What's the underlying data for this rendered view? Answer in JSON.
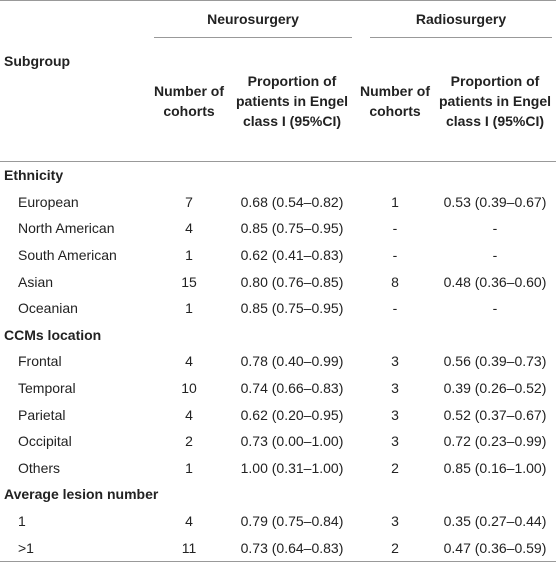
{
  "table": {
    "groups": [
      "Neurosurgery",
      "Radiosurgery"
    ],
    "columns": [
      "Subgroup",
      "Number of cohorts",
      "Proportion of patients in Engel class I (95%CI)",
      "Number of cohorts",
      "Proportion of patients in Engel class I (95%CI)"
    ],
    "sections": [
      {
        "title": "Ethnicity",
        "rows": [
          [
            "European",
            7,
            "0.68 (0.54–0.82)",
            1,
            "0.53 (0.39–0.67)"
          ],
          [
            "North American",
            4,
            "0.85 (0.75–0.95)",
            "-",
            "-"
          ],
          [
            "South American",
            1,
            "0.62 (0.41–0.83)",
            "-",
            "-"
          ],
          [
            "Asian",
            15,
            "0.80 (0.76–0.85)",
            8,
            "0.48 (0.36–0.60)"
          ],
          [
            "Oceanian",
            1,
            "0.85 (0.75–0.95)",
            "-",
            "-"
          ]
        ]
      },
      {
        "title": "CCMs location",
        "rows": [
          [
            "Frontal",
            4,
            "0.78 (0.40–0.99)",
            3,
            "0.56 (0.39–0.73)"
          ],
          [
            "Temporal",
            10,
            "0.74 (0.66–0.83)",
            3,
            "0.39 (0.26–0.52)"
          ],
          [
            "Parietal",
            4,
            "0.62 (0.20–0.95)",
            3,
            "0.52 (0.37–0.67)"
          ],
          [
            "Occipital",
            2,
            "0.73 (0.00–1.00)",
            3,
            "0.72 (0.23–0.99)"
          ],
          [
            "Others",
            1,
            "1.00 (0.31–1.00)",
            2,
            "0.85 (0.16–1.00)"
          ]
        ]
      },
      {
        "title": "Average lesion number",
        "rows": [
          [
            "1",
            4,
            "0.79 (0.75–0.84)",
            3,
            "0.35 (0.27–0.44)"
          ],
          [
            ">1",
            11,
            "0.73 (0.64–0.83)",
            2,
            "0.47 (0.36–0.59)"
          ]
        ]
      }
    ]
  }
}
